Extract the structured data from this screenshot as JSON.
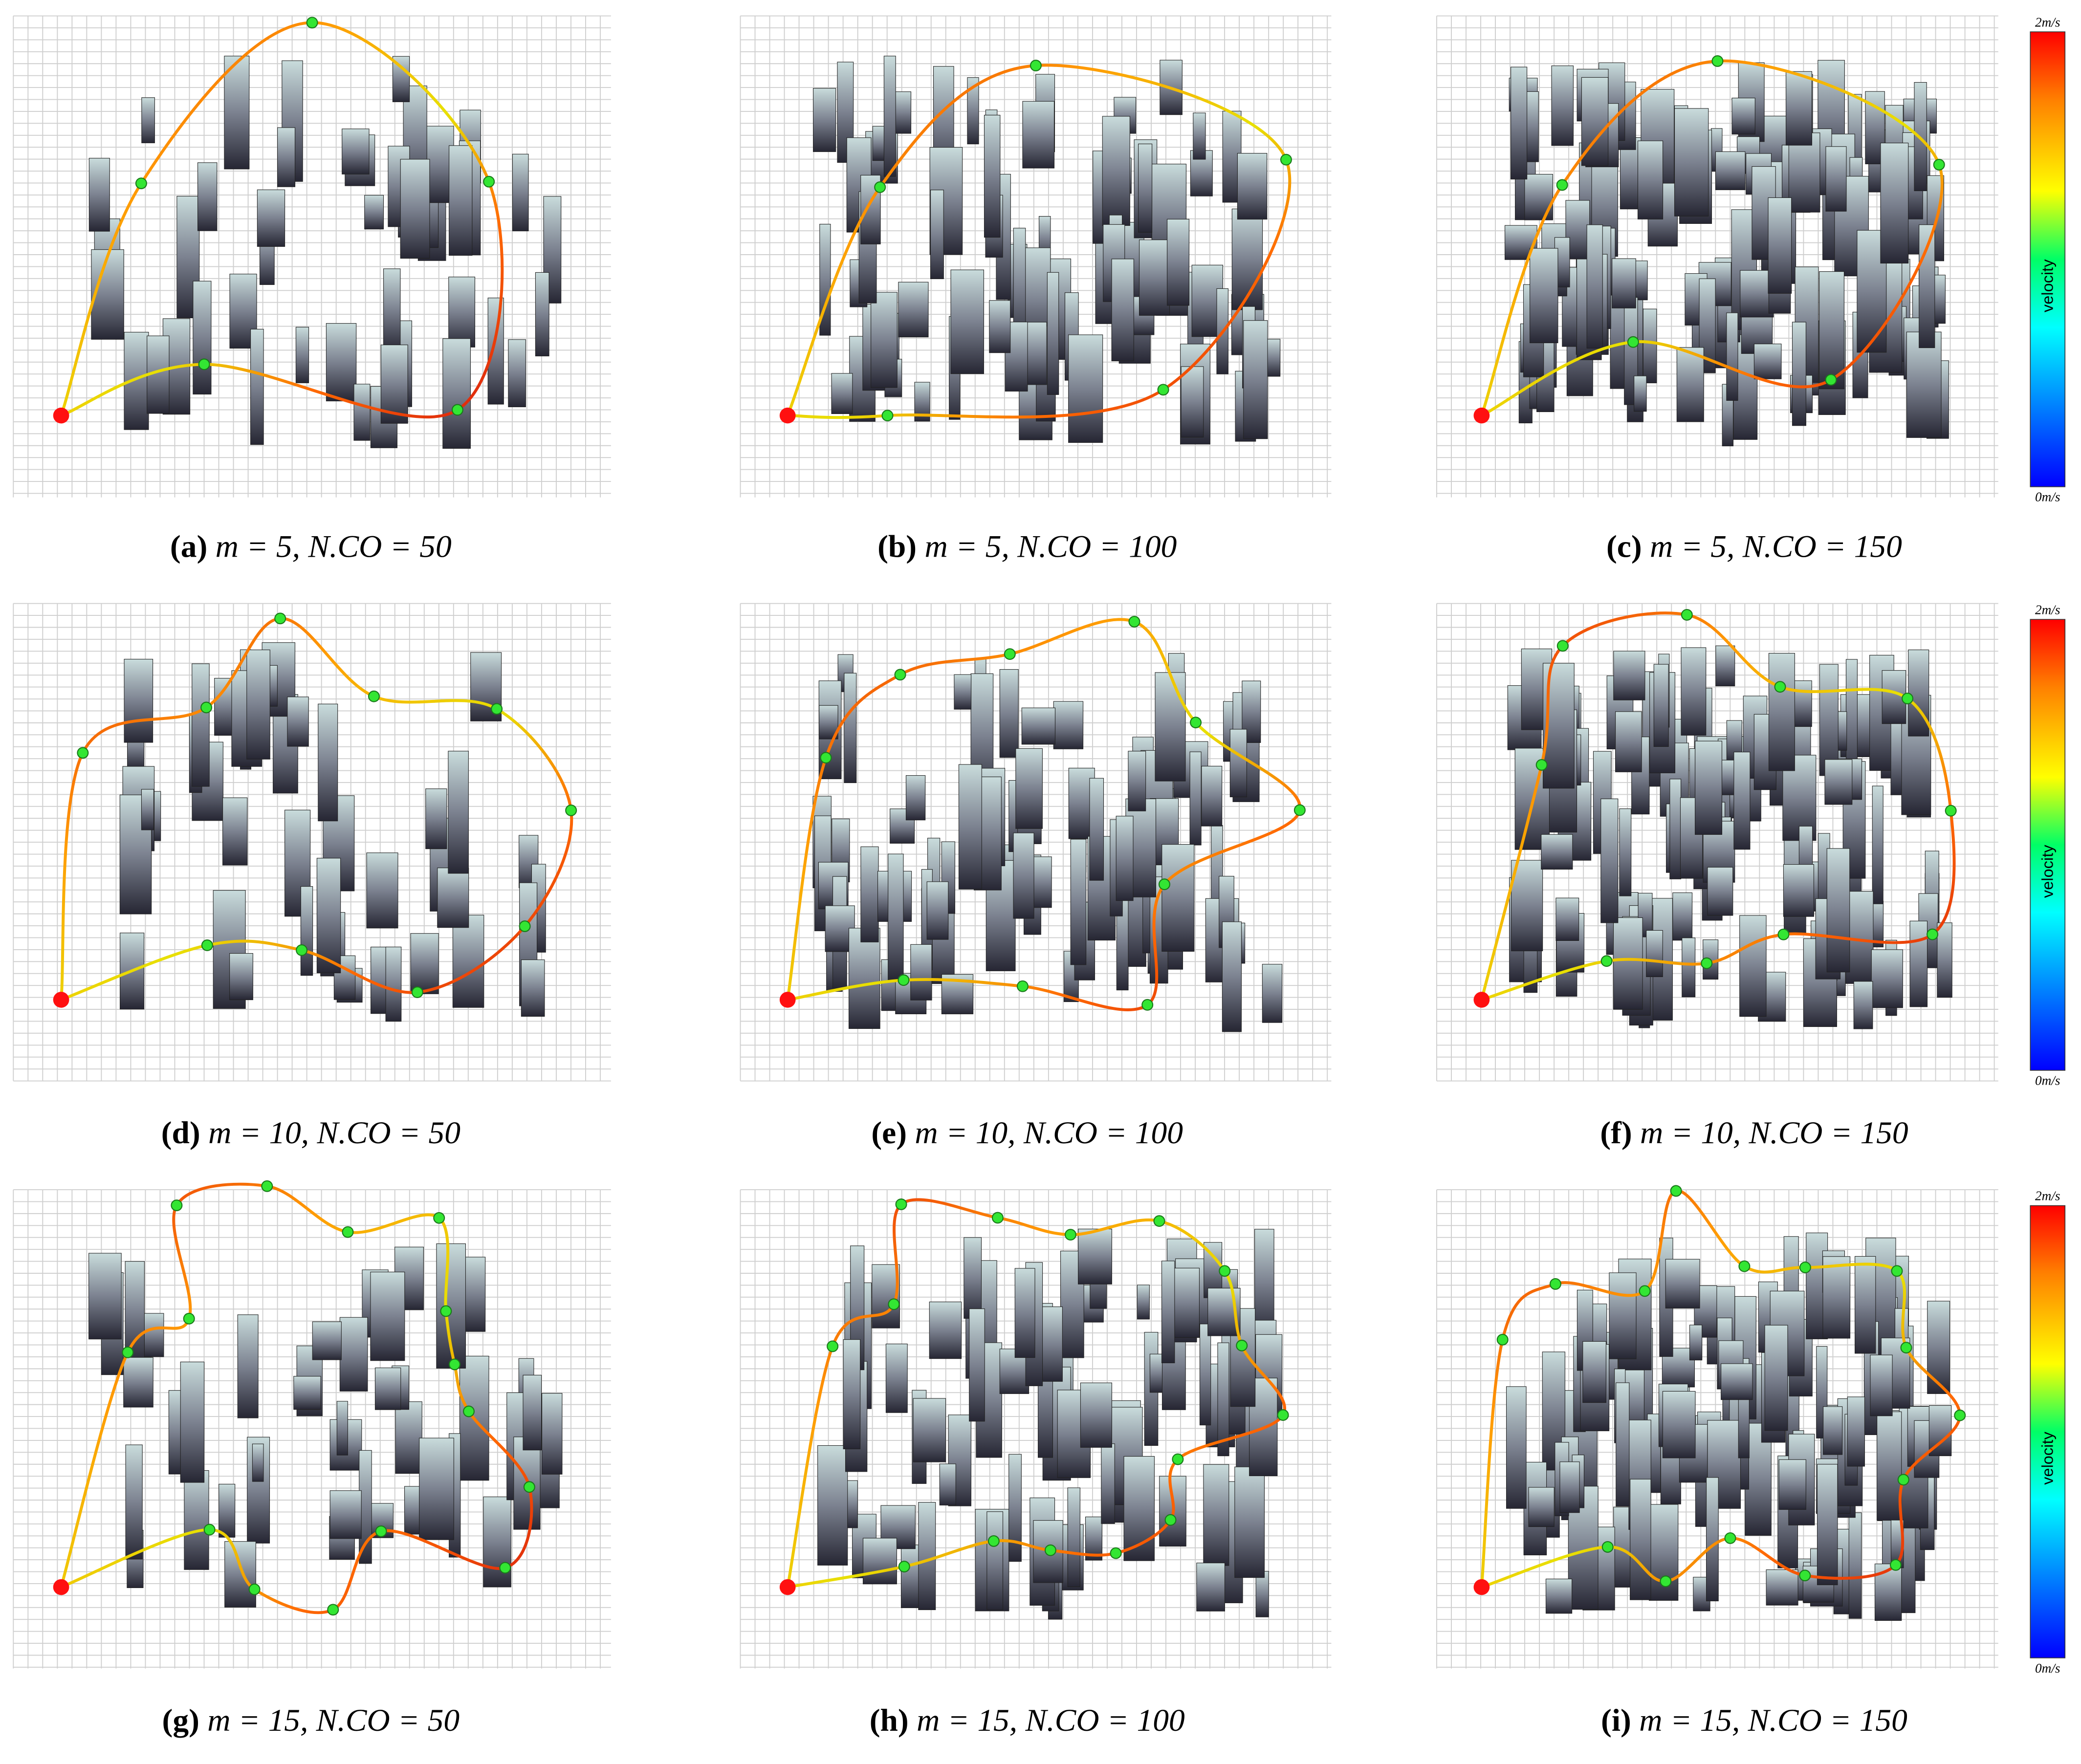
{
  "panels": [
    {
      "letter": "(a)",
      "caption": "m = 5, N.CO = 50"
    },
    {
      "letter": "(b)",
      "caption": "m = 5, N.CO = 100"
    },
    {
      "letter": "(c)",
      "caption": "m = 5, N.CO = 150"
    },
    {
      "letter": "(d)",
      "caption": "m = 10, N.CO = 50"
    },
    {
      "letter": "(e)",
      "caption": "m = 10, N.CO = 100"
    },
    {
      "letter": "(f)",
      "caption": "m = 10, N.CO = 150"
    },
    {
      "letter": "(g)",
      "caption": "m = 15, N.CO = 50"
    },
    {
      "letter": "(h)",
      "caption": "m = 15, N.CO = 100"
    },
    {
      "letter": "(i)",
      "caption": "m = 15, N.CO = 150"
    }
  ],
  "colorbar": {
    "max_label": "2m/s",
    "min_label": "0m/s",
    "title": "velocity"
  }
}
